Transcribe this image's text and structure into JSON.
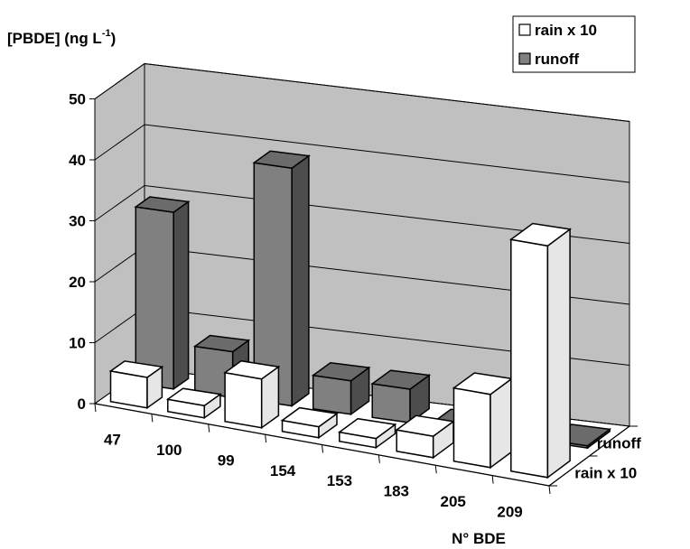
{
  "chart_data": {
    "type": "bar",
    "style": "3d-clustered-depth",
    "ylabel": {
      "main": "[PBDE] (ng L",
      "sup": "-1",
      "close": ")"
    },
    "xlabel": "N° BDE",
    "categories": [
      "47",
      "100",
      "99",
      "154",
      "153",
      "183",
      "205",
      "209"
    ],
    "series": [
      {
        "name": "rain x 10",
        "color": "#ffffff",
        "values": [
          5,
          2,
          8,
          1.8,
          1.5,
          3.5,
          12,
          38
        ]
      },
      {
        "name": "runoff",
        "color": "#808080",
        "values": [
          29,
          7.5,
          39,
          5.5,
          5.5,
          0,
          0,
          0
        ]
      }
    ],
    "depth_labels": [
      "runoff",
      "rain x 10"
    ],
    "ylim": [
      0,
      50
    ],
    "yticks": [
      0,
      10,
      20,
      30,
      40,
      50
    ],
    "grid": true,
    "legend_position": "top-right"
  }
}
